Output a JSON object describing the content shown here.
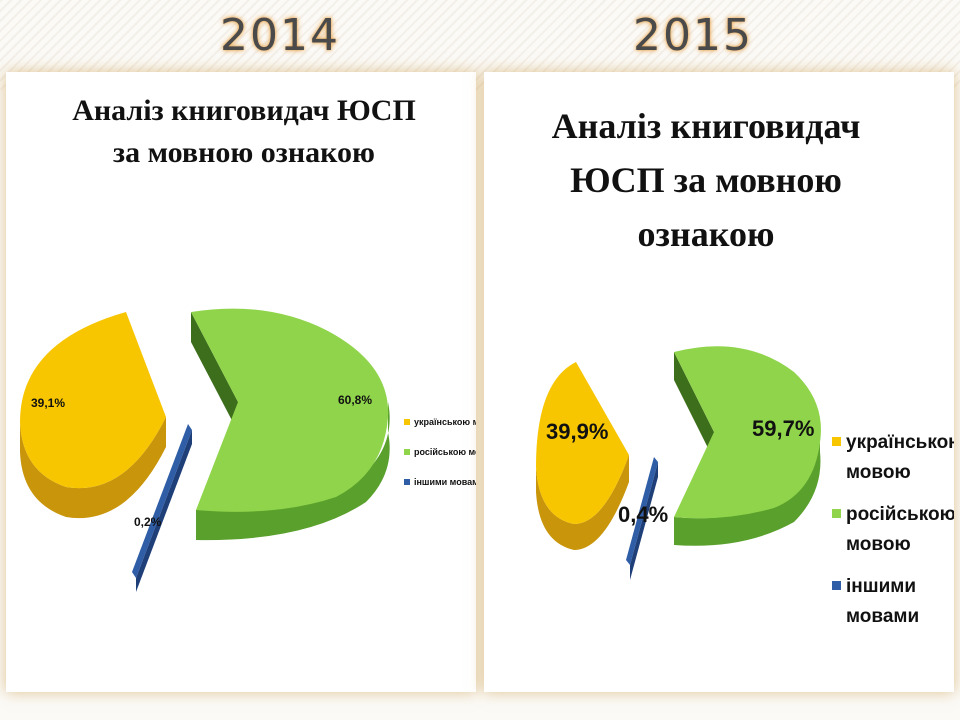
{
  "years": {
    "left": "2014",
    "right": "2015"
  },
  "colors": {
    "ukrainian": "#f7c600",
    "russian": "#8fd44a",
    "other": "#2f5da6",
    "glow": "#e8a44a"
  },
  "chart_data": [
    {
      "type": "pie",
      "title_lines": [
        "Аналіз книговидач ЮСП",
        "за мовною ознакою"
      ],
      "slices": [
        {
          "name": "українською мовою",
          "value": 39.1,
          "label": "39,1%"
        },
        {
          "name": "російською мовою",
          "value": 60.8,
          "label": "60,8%"
        },
        {
          "name": "іншими мовами",
          "value": 0.2,
          "label": "0,2%"
        }
      ],
      "legend": [
        "українською мовою",
        "російською мовою",
        "іншими мовами"
      ],
      "legend_position": "right"
    },
    {
      "type": "pie",
      "title_lines": [
        "Аналіз книговидач",
        "ЮСП за мовною",
        "ознакою"
      ],
      "slices": [
        {
          "name": "українською мовою",
          "value": 39.9,
          "label": "39,9%"
        },
        {
          "name": "російською мовою",
          "value": 59.7,
          "label": "59,7%"
        },
        {
          "name": "іншими мовами",
          "value": 0.4,
          "label": "0,4%"
        }
      ],
      "legend": [
        [
          "українською",
          "мовою"
        ],
        [
          "російською",
          "мовою"
        ],
        [
          "іншими",
          "мовами"
        ]
      ],
      "legend_position": "right"
    }
  ]
}
